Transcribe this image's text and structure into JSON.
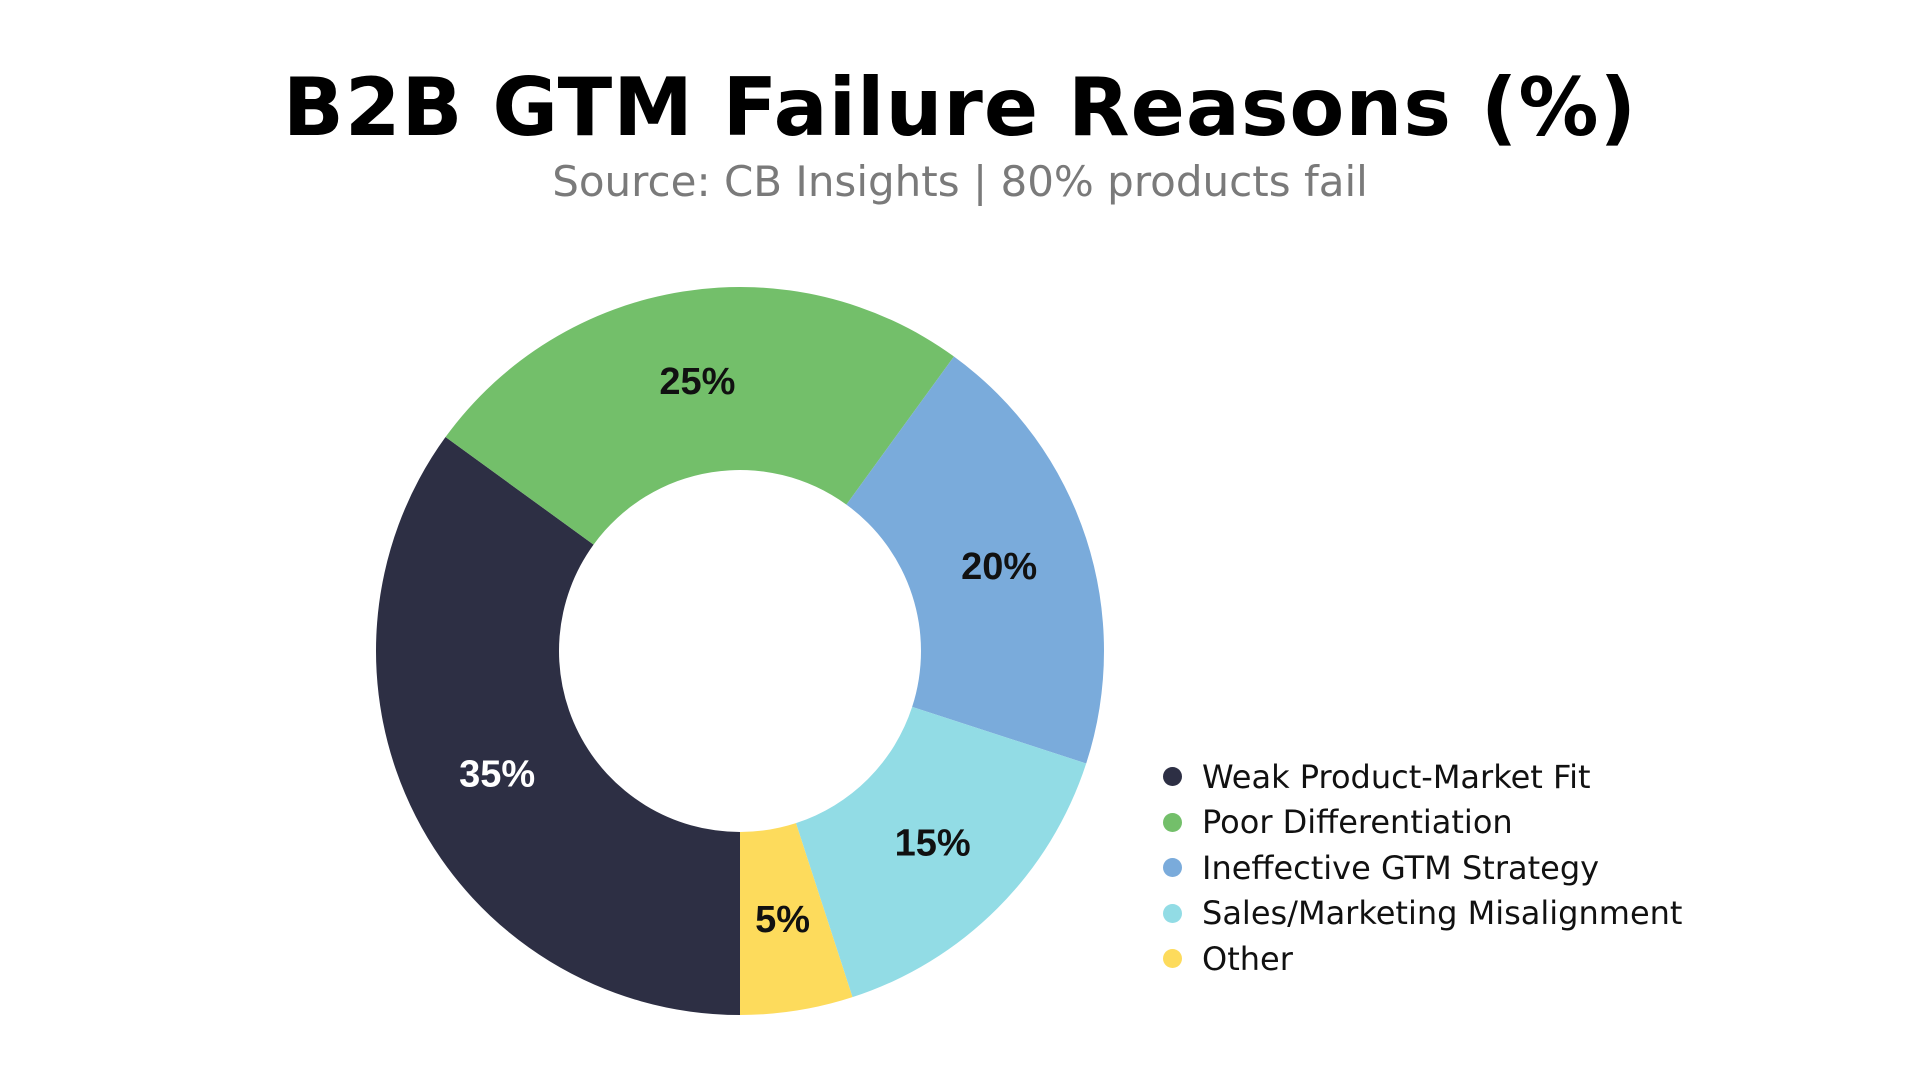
{
  "chart_data": {
    "type": "pie",
    "title": "B2B GTM Failure Reasons (%)",
    "subtitle": "Source: CB Insights | 80% products fail",
    "slices": [
      {
        "label": "Weak Product-Market Fit",
        "value": 35,
        "value_label": "35%",
        "color": "#2d2f44",
        "label_color": "#ffffff"
      },
      {
        "label": "Poor Differentiation",
        "value": 25,
        "value_label": "25%",
        "color": "#73bf6a",
        "label_color": "#111111"
      },
      {
        "label": "Ineffective GTM Strategy",
        "value": 20,
        "value_label": "20%",
        "color": "#7aabdb",
        "label_color": "#111111"
      },
      {
        "label": "Sales/Marketing Misalignment",
        "value": 15,
        "value_label": "15%",
        "color": "#92dce5",
        "label_color": "#111111"
      },
      {
        "label": "Other",
        "value": 5,
        "value_label": "5%",
        "color": "#fddb5c",
        "label_color": "#111111"
      }
    ],
    "start_angle": "bottom",
    "direction": "clockwise",
    "donut": true,
    "legend_position": "bottom-right"
  }
}
